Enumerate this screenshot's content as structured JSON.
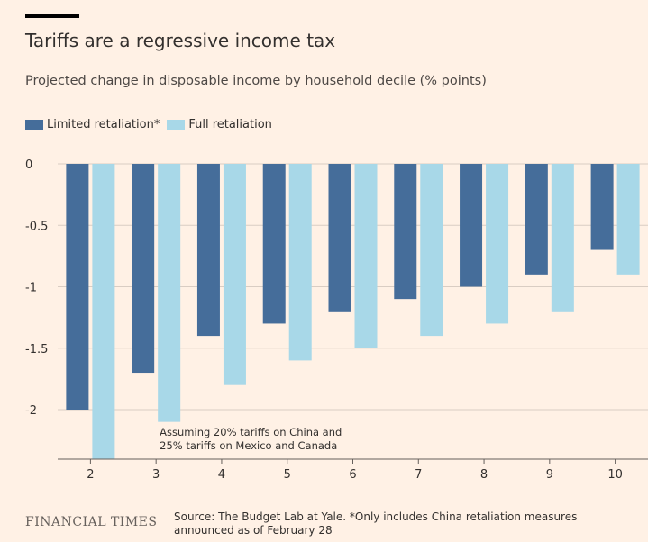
{
  "chart_data": {
    "type": "bar",
    "title": "Tariffs are a regressive income tax",
    "subtitle": "Projected change in disposable income by household decile (% points)",
    "categories": [
      "2",
      "3",
      "4",
      "5",
      "6",
      "7",
      "8",
      "9",
      "10"
    ],
    "series": [
      {
        "name": "Limited retaliation*",
        "color": "#456d9a",
        "values": [
          -2.0,
          -1.7,
          -1.4,
          -1.3,
          -1.2,
          -1.1,
          -1.0,
          -0.9,
          -0.7
        ]
      },
      {
        "name": "Full retaliation",
        "color": "#a8d8e8",
        "values": [
          -2.45,
          -2.1,
          -1.8,
          -1.6,
          -1.5,
          -1.4,
          -1.3,
          -1.2,
          -0.9
        ]
      }
    ],
    "ylim": [
      -2.4,
      0
    ],
    "yticks": [
      0,
      -0.5,
      -1,
      -1.5,
      -2
    ],
    "ytick_labels": [
      "0",
      "-0.5",
      "-1",
      "-1.5",
      "-2"
    ],
    "xlabel": "",
    "ylabel": "",
    "grid": true,
    "legend": "top-left",
    "annotation": {
      "category": "3",
      "lines": [
        "Assuming 20% tariffs on China and",
        "25% tariffs on Mexico and Canada"
      ]
    }
  },
  "footer": {
    "logo": "FINANCIAL TIMES",
    "source": "Source: The Budget Lab at Yale. *Only includes China retaliation measures announced as of February 28"
  }
}
